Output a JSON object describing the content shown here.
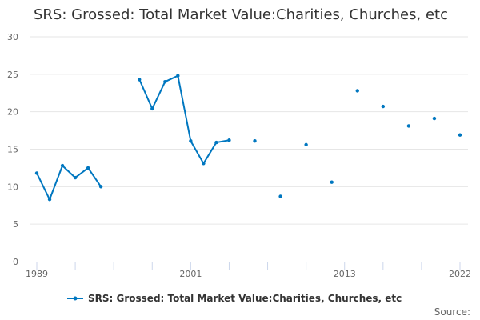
{
  "chart_data": {
    "type": "line",
    "title": "SRS: Grossed: Total Market Value:Charities, Churches, etc",
    "xlabel": "",
    "ylabel": "",
    "ylim": [
      0,
      30
    ],
    "yticks": [
      "0",
      "5",
      "10",
      "15",
      "20",
      "25",
      "30"
    ],
    "xlim": [
      1989,
      2022
    ],
    "xtick_years": [
      1989,
      1992,
      1995,
      1998,
      2001,
      2004,
      2007,
      2010,
      2013,
      2016,
      2019,
      2022
    ],
    "xtick_labels": [
      "1989",
      "2001",
      "2013",
      "2022"
    ],
    "grid": true,
    "legend_position": "bottom",
    "series": [
      {
        "name": "SRS: Grossed: Total Market Value:Charities, Churches, etc",
        "color": "#0077c0",
        "x": [
          1989,
          1990,
          1991,
          1992,
          1993,
          1994,
          1995,
          1996,
          1997,
          1998,
          1999,
          2000,
          2001,
          2002,
          2003,
          2004,
          2005,
          2006,
          2007,
          2008,
          2009,
          2010,
          2011,
          2012,
          2013,
          2014,
          2015,
          2016,
          2017,
          2018,
          2019,
          2020,
          2021,
          2022
        ],
        "values": [
          11.8,
          8.3,
          12.8,
          11.2,
          12.5,
          10.0,
          null,
          null,
          24.3,
          20.4,
          24.0,
          24.8,
          16.1,
          13.1,
          15.9,
          16.2,
          null,
          16.1,
          null,
          8.7,
          null,
          15.6,
          null,
          10.6,
          null,
          22.8,
          null,
          20.7,
          null,
          18.1,
          null,
          19.1,
          null,
          16.9
        ]
      }
    ]
  },
  "footer": {
    "source_label": "Source:"
  }
}
